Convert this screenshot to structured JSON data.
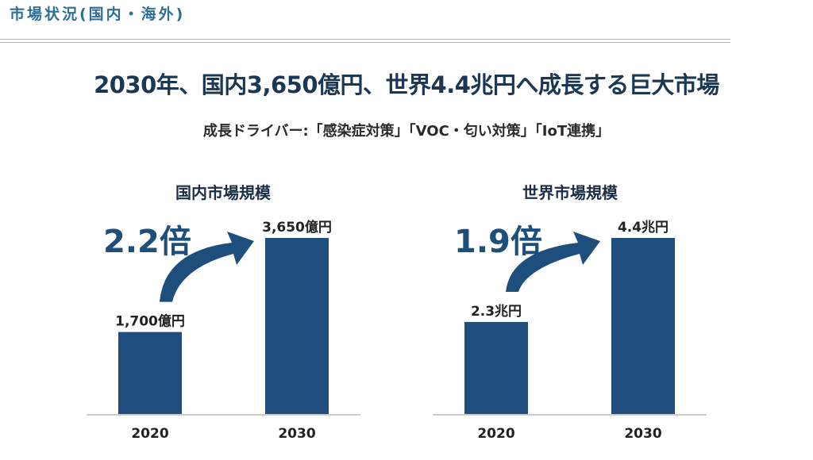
{
  "header": {
    "title": "市場状況(国内・海外)"
  },
  "headline": "2030年、国内3,650億円、世界4.4兆円へ成長する巨大市場",
  "drivers": "成長ドライバー:「感染症対策」「VOC・匂い対策」「IoT連携」",
  "colors": {
    "bar": "#1f4e7e",
    "arrow": "#1d4e7c",
    "accent": "#2e6f96"
  },
  "chart_data": [
    {
      "type": "bar",
      "title": "国内市場規模",
      "categories": [
        "2020",
        "2030"
      ],
      "values": [
        1700,
        3650
      ],
      "unit": "億円",
      "value_labels": [
        "1,700億円",
        "3,650億円"
      ],
      "growth_label": "2.2倍",
      "xlabel": "",
      "ylabel": "",
      "ylim": [
        0,
        3650
      ],
      "grid": false,
      "legend": "none"
    },
    {
      "type": "bar",
      "title": "世界市場規模",
      "categories": [
        "2020",
        "2030"
      ],
      "values": [
        2.3,
        4.4
      ],
      "unit": "兆円",
      "value_labels": [
        "2.3兆円",
        "4.4兆円"
      ],
      "growth_label": "1.9倍",
      "xlabel": "",
      "ylabel": "",
      "ylim": [
        0,
        4.4
      ],
      "grid": false,
      "legend": "none"
    }
  ]
}
